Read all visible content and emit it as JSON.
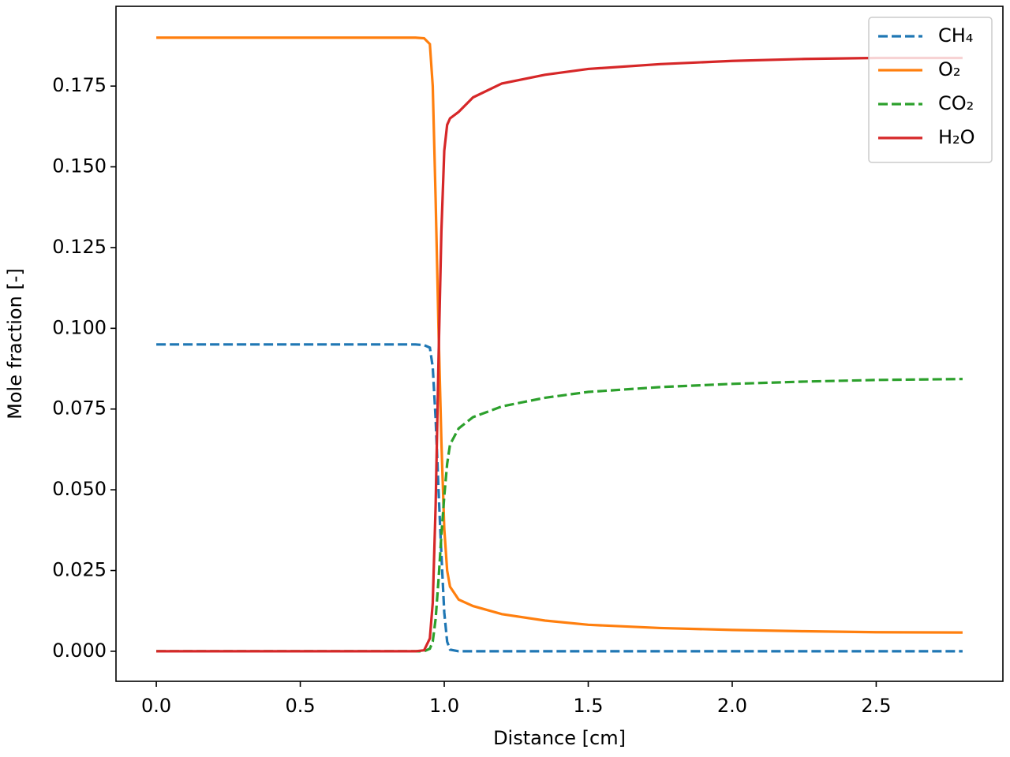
{
  "chart_data": {
    "type": "line",
    "x_label": "Distance [cm]",
    "y_label": "Mole fraction [-]",
    "x": [
      0,
      0.5,
      0.9,
      0.93,
      0.95,
      0.96,
      0.97,
      0.98,
      0.99,
      1.0,
      1.01,
      1.02,
      1.05,
      1.1,
      1.2,
      1.35,
      1.5,
      1.75,
      2.0,
      2.25,
      2.5,
      2.8
    ],
    "series": [
      {
        "name": "CH₄",
        "color": "#1f77b4",
        "linestyle": "dashed",
        "values": [
          0.095,
          0.095,
          0.095,
          0.0948,
          0.094,
          0.088,
          0.072,
          0.05,
          0.03,
          0.012,
          0.003,
          0.0005,
          0,
          0,
          0,
          0,
          0,
          0,
          0,
          0,
          0,
          0
        ]
      },
      {
        "name": "O₂",
        "color": "#ff7f0e",
        "linestyle": "solid",
        "values": [
          0.19,
          0.19,
          0.19,
          0.1898,
          0.188,
          0.175,
          0.14,
          0.1,
          0.065,
          0.038,
          0.025,
          0.02,
          0.016,
          0.014,
          0.0115,
          0.0095,
          0.0082,
          0.0072,
          0.0066,
          0.0062,
          0.0059,
          0.0058
        ]
      },
      {
        "name": "CO₂",
        "color": "#2ca02c",
        "linestyle": "dashed",
        "values": [
          0,
          0,
          0,
          0,
          0.0008,
          0.003,
          0.01,
          0.022,
          0.036,
          0.048,
          0.058,
          0.064,
          0.069,
          0.0725,
          0.0758,
          0.0785,
          0.0803,
          0.0818,
          0.0828,
          0.0835,
          0.084,
          0.0843
        ]
      },
      {
        "name": "H₂O",
        "color": "#d62728",
        "linestyle": "solid",
        "values": [
          0,
          0,
          0,
          0.0003,
          0.004,
          0.015,
          0.045,
          0.09,
          0.13,
          0.155,
          0.163,
          0.165,
          0.167,
          0.1715,
          0.1758,
          0.1785,
          0.1803,
          0.1818,
          0.1828,
          0.1834,
          0.1837,
          0.1837
        ]
      }
    ],
    "xlim": [
      -0.14,
      2.94
    ],
    "ylim": [
      -0.0093,
      0.1997
    ],
    "xticks": [
      {
        "value": 0,
        "label": "0.0"
      },
      0.5,
      {
        "value": 1,
        "label": "1.0"
      },
      1.5,
      {
        "value": 2,
        "label": "2.0"
      },
      2.5
    ],
    "yticks": [
      {
        "value": 0,
        "label": "0.000"
      },
      {
        "value": 0.025,
        "label": "0.025"
      },
      {
        "value": 0.05,
        "label": "0.050"
      },
      {
        "value": 0.075,
        "label": "0.075"
      },
      {
        "value": 0.1,
        "label": "0.100"
      },
      {
        "value": 0.125,
        "label": "0.125"
      },
      {
        "value": 0.15,
        "label": "0.150"
      },
      {
        "value": 0.175,
        "label": "0.175"
      }
    ],
    "grid": false,
    "legend": "upper right"
  }
}
